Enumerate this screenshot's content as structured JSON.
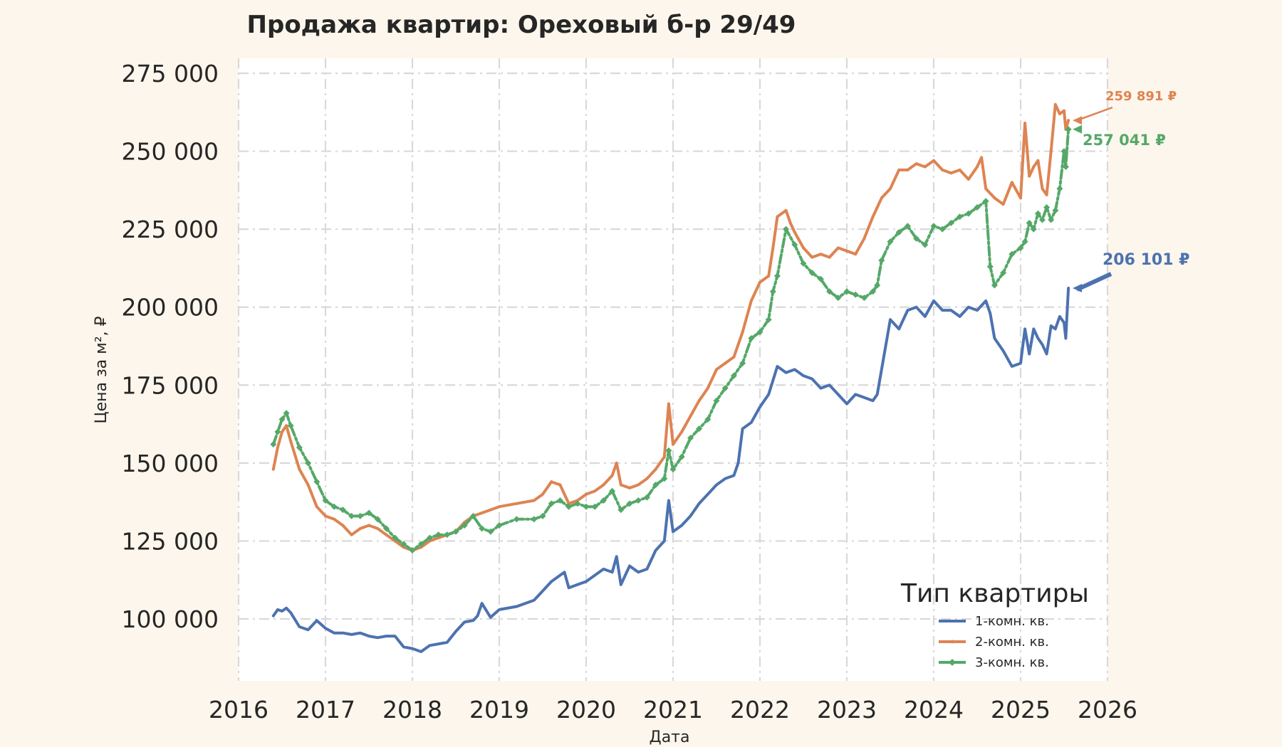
{
  "chart_data": {
    "type": "line",
    "title": "Продажа квартир: Ореховый б-р 29/49",
    "xlabel": "Дата",
    "ylabel": "Цена за м², ₽",
    "xlim": [
      2016,
      2026
    ],
    "ylim": [
      80000,
      280000
    ],
    "x_ticks": [
      2016,
      2017,
      2018,
      2019,
      2020,
      2021,
      2022,
      2023,
      2024,
      2025,
      2026
    ],
    "x_tick_labels": [
      "2016",
      "2017",
      "2018",
      "2019",
      "2020",
      "2021",
      "2022",
      "2023",
      "2024",
      "2025",
      "2026"
    ],
    "y_ticks": [
      100000,
      125000,
      150000,
      175000,
      200000,
      225000,
      250000,
      275000
    ],
    "y_tick_labels": [
      "100 000",
      "125 000",
      "150 000",
      "175 000",
      "200 000",
      "225 000",
      "250 000",
      "275 000"
    ],
    "grid": true,
    "background": "#fdf6ec",
    "plot_background": "#ffffff",
    "legend": {
      "title": "Тип квартиры",
      "placement": "bottom-right"
    },
    "series": [
      {
        "name": "1-комн. кв.",
        "color": "#4c72b0",
        "marker": "none",
        "last_value_label": "206 101 ₽",
        "x": [
          2016.4,
          2016.45,
          2016.5,
          2016.55,
          2016.6,
          2016.7,
          2016.8,
          2016.9,
          2017.0,
          2017.1,
          2017.2,
          2017.3,
          2017.4,
          2017.5,
          2017.6,
          2017.7,
          2017.8,
          2017.9,
          2018.0,
          2018.1,
          2018.2,
          2018.3,
          2018.4,
          2018.5,
          2018.6,
          2018.7,
          2018.75,
          2018.8,
          2018.9,
          2019.0,
          2019.2,
          2019.4,
          2019.5,
          2019.6,
          2019.7,
          2019.75,
          2019.8,
          2019.9,
          2020.0,
          2020.1,
          2020.2,
          2020.3,
          2020.35,
          2020.4,
          2020.5,
          2020.6,
          2020.7,
          2020.8,
          2020.9,
          2020.95,
          2021.0,
          2021.1,
          2021.2,
          2021.3,
          2021.4,
          2021.5,
          2021.6,
          2021.7,
          2021.75,
          2021.8,
          2021.9,
          2022.0,
          2022.1,
          2022.2,
          2022.3,
          2022.4,
          2022.5,
          2022.6,
          2022.7,
          2022.8,
          2022.9,
          2023.0,
          2023.1,
          2023.2,
          2023.3,
          2023.35,
          2023.4,
          2023.5,
          2023.6,
          2023.7,
          2023.8,
          2023.9,
          2024.0,
          2024.1,
          2024.2,
          2024.3,
          2024.4,
          2024.5,
          2024.6,
          2024.65,
          2024.7,
          2024.8,
          2024.9,
          2025.0,
          2025.05,
          2025.1,
          2025.15,
          2025.2,
          2025.25,
          2025.3,
          2025.35,
          2025.4,
          2025.45,
          2025.5,
          2025.52,
          2025.55
        ],
        "y": [
          101000,
          103000,
          102500,
          103500,
          102000,
          97500,
          96500,
          99500,
          97000,
          95500,
          95500,
          95000,
          95500,
          94500,
          94000,
          94500,
          94500,
          91000,
          90500,
          89500,
          91500,
          92000,
          92500,
          96000,
          99000,
          99500,
          101000,
          105000,
          100500,
          103000,
          104000,
          106000,
          109000,
          112000,
          114000,
          115000,
          110000,
          111000,
          112000,
          114000,
          116000,
          115000,
          120000,
          111000,
          117000,
          115000,
          116000,
          122000,
          125000,
          138000,
          128000,
          130000,
          133000,
          137000,
          140000,
          143000,
          145000,
          146000,
          150000,
          161000,
          163000,
          168000,
          172000,
          181000,
          179000,
          180000,
          178000,
          177000,
          174000,
          175000,
          172000,
          169000,
          172000,
          171000,
          170000,
          172000,
          180000,
          196000,
          193000,
          199000,
          200000,
          197000,
          202000,
          199000,
          199000,
          197000,
          200000,
          199000,
          202000,
          198000,
          190000,
          186000,
          181000,
          182000,
          193000,
          185000,
          193000,
          190000,
          188000,
          185000,
          194000,
          193000,
          197000,
          195000,
          190000,
          206101
        ]
      },
      {
        "name": "2-комн. кв.",
        "color": "#dd8452",
        "marker": "small",
        "last_value_label": "259 891 ₽",
        "x": [
          2016.4,
          2016.45,
          2016.5,
          2016.55,
          2016.6,
          2016.7,
          2016.8,
          2016.9,
          2017.0,
          2017.1,
          2017.2,
          2017.3,
          2017.4,
          2017.5,
          2017.6,
          2017.7,
          2017.8,
          2017.9,
          2018.0,
          2018.1,
          2018.2,
          2018.3,
          2018.4,
          2018.5,
          2018.6,
          2018.7,
          2018.8,
          2018.9,
          2019.0,
          2019.2,
          2019.4,
          2019.5,
          2019.6,
          2019.7,
          2019.8,
          2019.9,
          2020.0,
          2020.1,
          2020.2,
          2020.3,
          2020.35,
          2020.4,
          2020.5,
          2020.6,
          2020.7,
          2020.8,
          2020.9,
          2020.95,
          2021.0,
          2021.1,
          2021.2,
          2021.3,
          2021.4,
          2021.5,
          2021.6,
          2021.7,
          2021.8,
          2021.9,
          2022.0,
          2022.1,
          2022.15,
          2022.2,
          2022.3,
          2022.35,
          2022.4,
          2022.5,
          2022.6,
          2022.7,
          2022.8,
          2022.9,
          2023.0,
          2023.1,
          2023.2,
          2023.3,
          2023.35,
          2023.4,
          2023.5,
          2023.6,
          2023.7,
          2023.8,
          2023.9,
          2024.0,
          2024.1,
          2024.2,
          2024.3,
          2024.4,
          2024.5,
          2024.55,
          2024.6,
          2024.7,
          2024.8,
          2024.9,
          2025.0,
          2025.05,
          2025.1,
          2025.15,
          2025.2,
          2025.25,
          2025.3,
          2025.35,
          2025.4,
          2025.45,
          2025.5,
          2025.52,
          2025.55
        ],
        "y": [
          148000,
          155000,
          160000,
          162000,
          157000,
          148000,
          143000,
          136000,
          133000,
          132000,
          130000,
          127000,
          129000,
          130000,
          129000,
          127000,
          125000,
          123000,
          122000,
          123000,
          125000,
          126000,
          127000,
          128000,
          131000,
          133000,
          134000,
          135000,
          136000,
          137000,
          138000,
          140000,
          144000,
          143000,
          137000,
          138000,
          140000,
          141000,
          143000,
          146000,
          150000,
          143000,
          142000,
          143000,
          145000,
          148000,
          152000,
          169000,
          156000,
          160000,
          165000,
          170000,
          174000,
          180000,
          182000,
          184000,
          192000,
          202000,
          208000,
          210000,
          219000,
          229000,
          231000,
          227000,
          224000,
          219000,
          216000,
          217000,
          216000,
          219000,
          218000,
          217000,
          222000,
          229000,
          232000,
          235000,
          238000,
          244000,
          244000,
          246000,
          245000,
          247000,
          244000,
          243000,
          244000,
          241000,
          245000,
          248000,
          238000,
          235000,
          233000,
          240000,
          235000,
          259000,
          242000,
          245000,
          247000,
          238000,
          236000,
          250000,
          265000,
          262000,
          263000,
          257000,
          259891
        ]
      },
      {
        "name": "3-комн. кв.",
        "color": "#55a868",
        "marker": "diamond",
        "last_value_label": "257 041 ₽",
        "x": [
          2016.4,
          2016.45,
          2016.5,
          2016.55,
          2016.6,
          2016.7,
          2016.8,
          2016.9,
          2017.0,
          2017.1,
          2017.2,
          2017.3,
          2017.4,
          2017.5,
          2017.6,
          2017.7,
          2017.8,
          2017.9,
          2018.0,
          2018.1,
          2018.2,
          2018.3,
          2018.4,
          2018.5,
          2018.6,
          2018.7,
          2018.8,
          2018.9,
          2019.0,
          2019.2,
          2019.4,
          2019.5,
          2019.6,
          2019.7,
          2019.8,
          2019.9,
          2020.0,
          2020.1,
          2020.2,
          2020.3,
          2020.4,
          2020.5,
          2020.6,
          2020.7,
          2020.8,
          2020.9,
          2020.95,
          2021.0,
          2021.1,
          2021.2,
          2021.3,
          2021.4,
          2021.5,
          2021.6,
          2021.7,
          2021.8,
          2021.9,
          2022.0,
          2022.1,
          2022.15,
          2022.2,
          2022.3,
          2022.4,
          2022.5,
          2022.6,
          2022.7,
          2022.8,
          2022.9,
          2023.0,
          2023.1,
          2023.2,
          2023.3,
          2023.35,
          2023.4,
          2023.5,
          2023.6,
          2023.7,
          2023.8,
          2023.9,
          2024.0,
          2024.1,
          2024.2,
          2024.3,
          2024.4,
          2024.5,
          2024.6,
          2024.65,
          2024.7,
          2024.8,
          2024.9,
          2025.0,
          2025.05,
          2025.1,
          2025.15,
          2025.2,
          2025.25,
          2025.3,
          2025.35,
          2025.4,
          2025.45,
          2025.5,
          2025.52,
          2025.55
        ],
        "y": [
          156000,
          160000,
          164000,
          166000,
          162000,
          155000,
          150000,
          144000,
          138000,
          136000,
          135000,
          133000,
          133000,
          134000,
          132000,
          129000,
          126000,
          124000,
          122000,
          124000,
          126000,
          127000,
          127000,
          128000,
          130000,
          133000,
          129000,
          128000,
          130000,
          132000,
          132000,
          133000,
          137000,
          138000,
          136000,
          137000,
          136000,
          136000,
          138000,
          141000,
          135000,
          137000,
          138000,
          139000,
          143000,
          145000,
          154000,
          148000,
          152000,
          158000,
          161000,
          164000,
          170000,
          174000,
          178000,
          182000,
          190000,
          192000,
          196000,
          205000,
          210000,
          225000,
          220000,
          214000,
          211000,
          209000,
          205000,
          203000,
          205000,
          204000,
          203000,
          205000,
          207000,
          215000,
          221000,
          224000,
          226000,
          222000,
          220000,
          226000,
          225000,
          227000,
          229000,
          230000,
          232000,
          234000,
          213000,
          207000,
          211000,
          217000,
          219000,
          221000,
          227000,
          225000,
          230000,
          228000,
          232000,
          228000,
          231000,
          238000,
          250000,
          245000,
          257041
        ]
      }
    ]
  }
}
